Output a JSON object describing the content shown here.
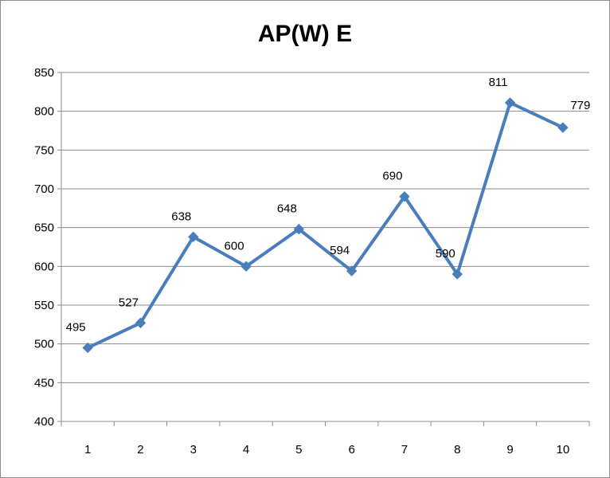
{
  "chart_data": {
    "type": "line",
    "title": "AP(W) E",
    "xlabel": "",
    "ylabel": "",
    "categories": [
      "1",
      "2",
      "3",
      "4",
      "5",
      "6",
      "7",
      "8",
      "9",
      "10"
    ],
    "series": [
      {
        "values": [
          495,
          527,
          638,
          600,
          648,
          594,
          690,
          590,
          811,
          779
        ],
        "color": "#4a7ebb",
        "marker": "diamond"
      }
    ],
    "ylim": [
      400,
      850
    ],
    "ytick_step": 50,
    "grid": true,
    "legend": "none",
    "data_labels": true
  }
}
